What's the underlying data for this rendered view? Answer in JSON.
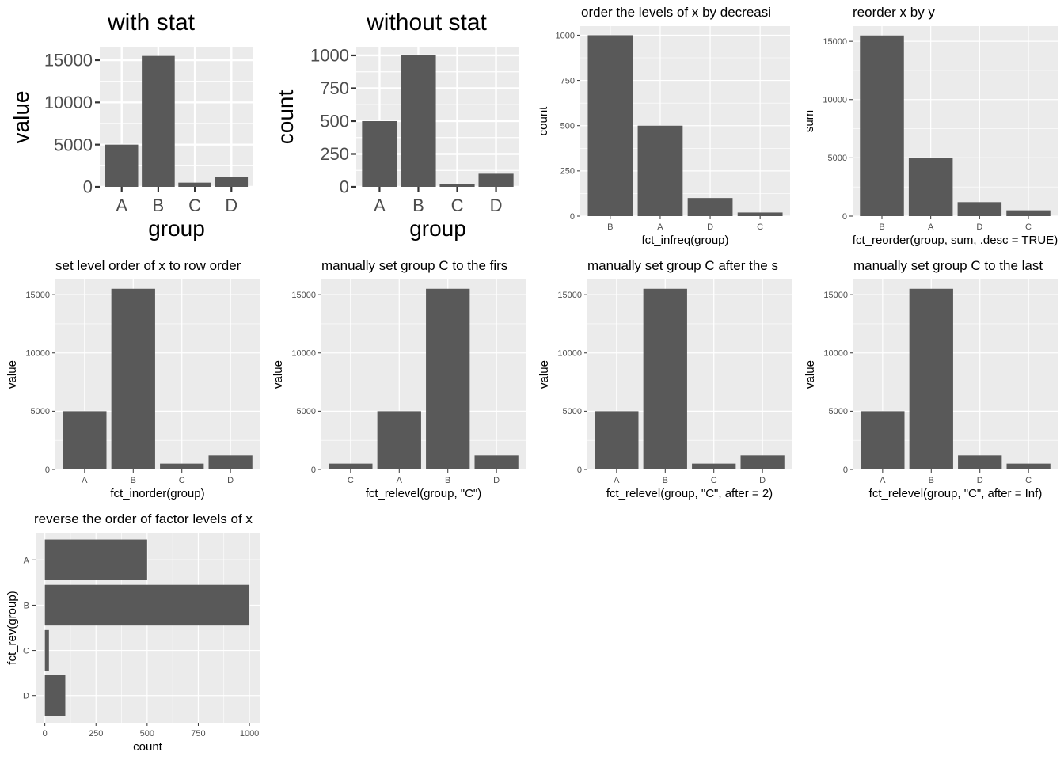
{
  "chart_data": [
    {
      "type": "bar",
      "title": "with stat",
      "xlabel": "group",
      "ylabel": "value",
      "categories": [
        "A",
        "B",
        "C",
        "D"
      ],
      "values": [
        5000,
        15500,
        500,
        1200
      ],
      "ylim": [
        0,
        16500
      ],
      "yticks": [
        0,
        5000,
        10000,
        15000
      ],
      "ytick_labels": [
        "0",
        "5000",
        "10000",
        "15000"
      ]
    },
    {
      "type": "bar",
      "title": "without stat",
      "xlabel": "group",
      "ylabel": "count",
      "categories": [
        "A",
        "B",
        "C",
        "D"
      ],
      "values": [
        500,
        1000,
        20,
        100
      ],
      "ylim": [
        0,
        1060
      ],
      "yticks": [
        0,
        250,
        500,
        750,
        1000
      ],
      "ytick_labels": [
        "0",
        "250",
        "500",
        "750",
        "1000"
      ]
    },
    {
      "type": "bar",
      "title": "order the levels of x by decreasi",
      "xlabel": "fct_infreq(group)",
      "ylabel": "count",
      "categories": [
        "B",
        "A",
        "D",
        "C"
      ],
      "values": [
        1000,
        500,
        100,
        20
      ],
      "ylim": [
        0,
        1050
      ],
      "yticks": [
        0,
        250,
        500,
        750,
        1000
      ],
      "ytick_labels": [
        "0",
        "250",
        "500",
        "750",
        "1000"
      ]
    },
    {
      "type": "bar",
      "title": "reorder x by y",
      "xlabel": "fct_reorder(group, sum, .desc = TRUE)",
      "ylabel": "sum",
      "categories": [
        "B",
        "A",
        "D",
        "C"
      ],
      "values": [
        15500,
        5000,
        1200,
        500
      ],
      "ylim": [
        0,
        16300
      ],
      "yticks": [
        0,
        5000,
        10000,
        15000
      ],
      "ytick_labels": [
        "0",
        "5000",
        "10000",
        "15000"
      ]
    },
    {
      "type": "bar",
      "title": "set level order of x to row order",
      "xlabel": "fct_inorder(group)",
      "ylabel": "value",
      "categories": [
        "A",
        "B",
        "C",
        "D"
      ],
      "values": [
        5000,
        15500,
        500,
        1200
      ],
      "ylim": [
        0,
        16300
      ],
      "yticks": [
        0,
        5000,
        10000,
        15000
      ],
      "ytick_labels": [
        "0",
        "5000",
        "10000",
        "15000"
      ]
    },
    {
      "type": "bar",
      "title": "manually set group C to the firs",
      "xlabel": "fct_relevel(group, \"C\")",
      "ylabel": "value",
      "categories": [
        "C",
        "A",
        "B",
        "D"
      ],
      "values": [
        500,
        5000,
        15500,
        1200
      ],
      "ylim": [
        0,
        16300
      ],
      "yticks": [
        0,
        5000,
        10000,
        15000
      ],
      "ytick_labels": [
        "0",
        "5000",
        "10000",
        "15000"
      ]
    },
    {
      "type": "bar",
      "title": "manually set group C after the s",
      "xlabel": "fct_relevel(group, \"C\", after = 2)",
      "ylabel": "value",
      "categories": [
        "A",
        "B",
        "C",
        "D"
      ],
      "values": [
        5000,
        15500,
        500,
        1200
      ],
      "ylim": [
        0,
        16300
      ],
      "yticks": [
        0,
        5000,
        10000,
        15000
      ],
      "ytick_labels": [
        "0",
        "5000",
        "10000",
        "15000"
      ]
    },
    {
      "type": "bar",
      "title": "manually set group C to the last",
      "xlabel": "fct_relevel(group, \"C\", after = Inf)",
      "ylabel": "value",
      "categories": [
        "A",
        "B",
        "D",
        "C"
      ],
      "values": [
        5000,
        15500,
        1200,
        500
      ],
      "ylim": [
        0,
        16300
      ],
      "yticks": [
        0,
        5000,
        10000,
        15000
      ],
      "ytick_labels": [
        "0",
        "5000",
        "10000",
        "15000"
      ]
    },
    {
      "type": "bar",
      "orientation": "horizontal",
      "title": "reverse the order of factor levels of x",
      "xlabel": "count",
      "ylabel": "fct_rev(group)",
      "categories": [
        "A",
        "B",
        "C",
        "D"
      ],
      "values": [
        500,
        1000,
        20,
        100
      ],
      "xlim": [
        -45,
        1050
      ],
      "xticks": [
        0,
        250,
        500,
        750,
        1000
      ],
      "xtick_labels": [
        "0",
        "250",
        "500",
        "750",
        "1000"
      ]
    }
  ],
  "style": {
    "panel_bg": "#ebebeb",
    "grid_color": "#ffffff",
    "bar_fill": "#595959",
    "text_color": "#000000",
    "tick_text_color": "#4d4d4d"
  }
}
